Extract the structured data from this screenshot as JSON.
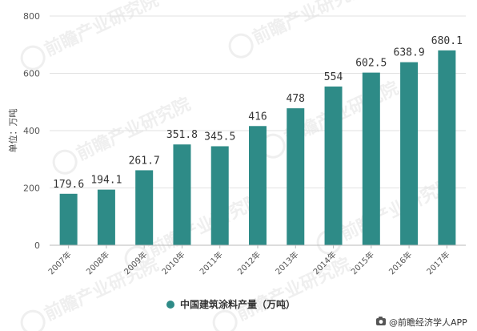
{
  "chart_data": {
    "type": "bar",
    "categories": [
      "2007年",
      "2008年",
      "2009年",
      "2010年",
      "2011年",
      "2012年",
      "2013年",
      "2014年",
      "2015年",
      "2016年",
      "2017年"
    ],
    "series": [
      {
        "name": "中国建筑涂料产量（万吨）",
        "values": [
          179.6,
          194.1,
          261.7,
          351.8,
          345.5,
          416,
          478,
          554,
          602.5,
          638.9,
          680.1
        ]
      }
    ],
    "data_labels": [
      "179.6",
      "194.1",
      "261.7",
      "351.8",
      "345.5",
      "416",
      "478",
      "554",
      "602.5",
      "638.9",
      "680.1"
    ],
    "ylabel": "单位：万吨",
    "ylim": [
      0,
      800
    ],
    "yticks": [
      0,
      200,
      400,
      600,
      800
    ],
    "bar_color": "#2e8b87",
    "grid": true,
    "legend_position": "bottom-center"
  },
  "source": {
    "text": "@前瞻经济学人APP"
  },
  "watermark": {
    "text": "前瞻产业研究院"
  }
}
